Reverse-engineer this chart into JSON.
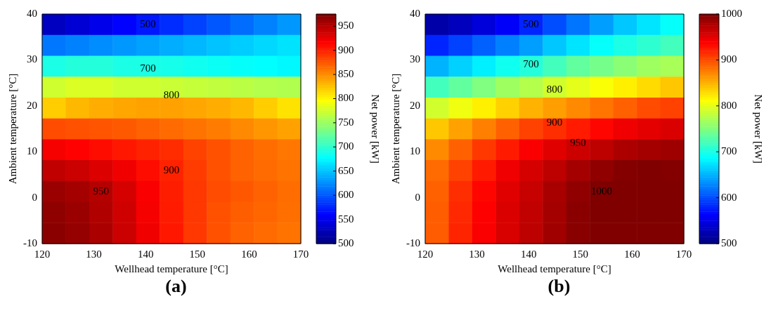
{
  "chart_data": [
    {
      "type": "heatmap",
      "title": "(a)",
      "xlabel": "Wellhead temperature [°C]",
      "ylabel": "Ambient temperature [°C]",
      "clabel": "Net power [kW]",
      "xlim": [
        120,
        170
      ],
      "xticks": [
        120,
        130,
        140,
        150,
        160,
        170
      ],
      "ylim": [
        -10,
        40
      ],
      "yticks": [
        -10,
        0,
        10,
        20,
        30,
        40
      ],
      "clim": [
        500,
        975
      ],
      "cticks": [
        500,
        550,
        600,
        650,
        700,
        750,
        800,
        850,
        900,
        950
      ],
      "cells": [
        [
          530,
          540,
          550,
          560,
          570,
          580,
          590,
          600,
          610,
          620,
          630
        ],
        [
          615,
          620,
          625,
          630,
          635,
          640,
          645,
          650,
          655,
          660,
          665
        ],
        [
          690,
          695,
          695,
          690,
          690,
          688,
          685,
          683,
          680,
          678,
          675
        ],
        [
          775,
          780,
          780,
          775,
          775,
          772,
          770,
          768,
          765,
          762,
          760
        ],
        [
          820,
          830,
          835,
          838,
          840,
          840,
          838,
          835,
          830,
          820,
          810
        ],
        [
          880,
          878,
          876,
          874,
          870,
          866,
          862,
          858,
          852,
          846,
          840
        ],
        [
          920,
          915,
          910,
          905,
          900,
          895,
          885,
          878,
          870,
          865,
          860
        ],
        [
          945,
          940,
          932,
          922,
          910,
          900,
          888,
          878,
          870,
          866,
          862
        ],
        [
          962,
          958,
          950,
          935,
          918,
          902,
          890,
          880,
          875,
          870,
          865
        ],
        [
          968,
          962,
          952,
          938,
          920,
          903,
          890,
          878,
          872,
          868,
          864
        ],
        [
          970,
          965,
          955,
          940,
          922,
          905,
          890,
          878,
          870,
          866,
          862
        ]
      ],
      "annotations": [
        "500",
        "700",
        "800",
        "900",
        "950"
      ]
    },
    {
      "type": "heatmap",
      "title": "(b)",
      "xlabel": "Wellhead temperature [°C]",
      "ylabel": "Ambient temperature [°C]",
      "clabel": "Net power [kW]",
      "xlim": [
        120,
        170
      ],
      "xticks": [
        120,
        130,
        140,
        150,
        160,
        170
      ],
      "ylim": [
        -10,
        40
      ],
      "yticks": [
        -10,
        0,
        10,
        20,
        30,
        40
      ],
      "clim": [
        500,
        1000
      ],
      "cticks": [
        500,
        600,
        700,
        800,
        900,
        1000
      ],
      "cells": [
        [
          520,
          530,
          545,
          560,
          580,
          600,
          620,
          640,
          660,
          675,
          690
        ],
        [
          580,
          595,
          610,
          625,
          640,
          660,
          675,
          690,
          700,
          710,
          720
        ],
        [
          650,
          665,
          680,
          695,
          705,
          720,
          735,
          745,
          755,
          765,
          770
        ],
        [
          720,
          735,
          750,
          765,
          775,
          790,
          800,
          810,
          820,
          830,
          840
        ],
        [
          790,
          805,
          820,
          835,
          850,
          860,
          870,
          880,
          890,
          900,
          905
        ],
        [
          840,
          858,
          875,
          890,
          905,
          915,
          925,
          935,
          945,
          950,
          955
        ],
        [
          870,
          890,
          910,
          925,
          940,
          952,
          962,
          970,
          978,
          982,
          985
        ],
        [
          885,
          905,
          925,
          945,
          958,
          970,
          982,
          992,
          998,
          1000,
          998
        ],
        [
          890,
          915,
          935,
          952,
          965,
          980,
          992,
          1000,
          1000,
          1000,
          1000
        ],
        [
          892,
          918,
          938,
          955,
          968,
          982,
          995,
          1000,
          1000,
          1000,
          1000
        ],
        [
          893,
          920,
          940,
          956,
          970,
          984,
          996,
          1000,
          1000,
          1000,
          1000
        ]
      ],
      "annotations": [
        "500",
        "700",
        "800",
        "900",
        "950",
        "1000"
      ]
    }
  ]
}
